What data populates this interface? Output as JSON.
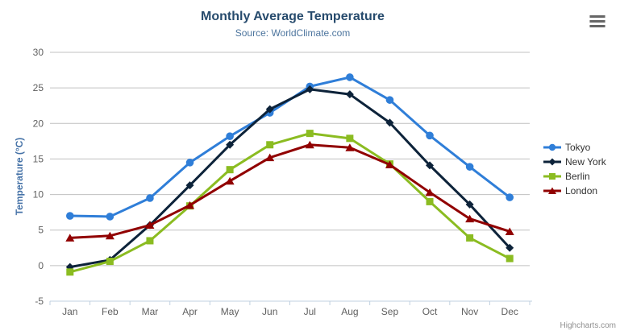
{
  "header": {
    "title": "Monthly Average Temperature",
    "subtitle": "Source: WorldClimate.com"
  },
  "toolbar": {
    "export_menu_icon": "hamburger-menu-icon"
  },
  "credits": {
    "label": "Highcharts.com"
  },
  "colors": {
    "title": "#274b6d",
    "subtitle": "#4d759e",
    "axis_label": "#606060",
    "y_axis_title": "#4572a7",
    "grid_line": "#c0c0c0",
    "axis_line": "#c0d0e0",
    "legend_text": "#333333",
    "credits_text": "#909090",
    "background": "#ffffff"
  },
  "chart_data": {
    "type": "line",
    "title": "Monthly Average Temperature",
    "subtitle": "Source: WorldClimate.com",
    "xlabel": "",
    "ylabel": "Temperature (°C)",
    "categories": [
      "Jan",
      "Feb",
      "Mar",
      "Apr",
      "May",
      "Jun",
      "Jul",
      "Aug",
      "Sep",
      "Oct",
      "Nov",
      "Dec"
    ],
    "ylim": [
      -5,
      30
    ],
    "yticks": [
      -5,
      0,
      5,
      10,
      15,
      20,
      25,
      30
    ],
    "grid": "horizontal",
    "legend_position": "right",
    "series": [
      {
        "name": "Tokyo",
        "color": "#2f7ed8",
        "marker": "circle",
        "values": [
          7.0,
          6.9,
          9.5,
          14.5,
          18.2,
          21.5,
          25.2,
          26.5,
          23.3,
          18.3,
          13.9,
          9.6
        ]
      },
      {
        "name": "New York",
        "color": "#0d233a",
        "marker": "diamond",
        "values": [
          -0.2,
          0.8,
          5.7,
          11.3,
          17.0,
          22.0,
          24.8,
          24.1,
          20.1,
          14.1,
          8.6,
          2.5
        ]
      },
      {
        "name": "Berlin",
        "color": "#8bbc21",
        "marker": "square",
        "values": [
          -0.9,
          0.6,
          3.5,
          8.4,
          13.5,
          17.0,
          18.6,
          17.9,
          14.3,
          9.0,
          3.9,
          1.0
        ]
      },
      {
        "name": "London",
        "color": "#910000",
        "marker": "triangle",
        "values": [
          3.9,
          4.2,
          5.7,
          8.5,
          11.9,
          15.2,
          17.0,
          16.6,
          14.2,
          10.3,
          6.6,
          4.8
        ]
      }
    ]
  }
}
